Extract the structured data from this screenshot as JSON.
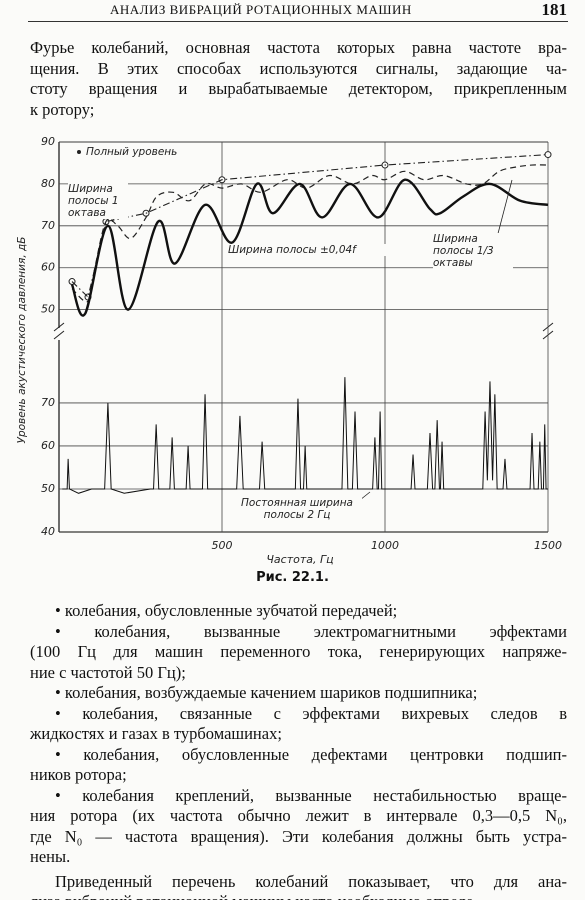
{
  "header": {
    "title": "АНАЛИЗ ВИБРАЦИЙ РОТАЦИОННЫХ МАШИН",
    "page": 181
  },
  "paragraphs": [
    [
      "Фурье колебаний, основная частота которых равна частоте вра-",
      "щения. В этих способах используются сигналы, задающие ча-",
      "стоту вращения и вырабатываемые детектором, прикрепленным",
      "к ротору;"
    ]
  ],
  "chart_data": [
    {
      "type": "line",
      "ylabel": "Уровень акустического давления, дБ",
      "xlim": [
        0,
        1500
      ],
      "ylim": [
        48,
        90
      ],
      "yticks": [
        50,
        60,
        70,
        80,
        90
      ],
      "grid": true,
      "series": [
        {
          "name": "Полный уровень",
          "color": "#222222",
          "style": "markers",
          "x": [
            40,
            89,
            144,
            267,
            500,
            1000,
            1500
          ],
          "values": [
            56.7,
            53,
            71,
            73,
            81,
            84.5,
            87
          ]
        },
        {
          "name": "Ширина полосы 1 октава",
          "color": "#222222",
          "style": "dashdot",
          "x": [
            40,
            89,
            144,
            267,
            500,
            1000,
            1500
          ],
          "values": [
            56.7,
            53,
            71,
            73,
            81,
            84.5,
            87
          ]
        },
        {
          "name": "Ширина полосы 1/3 октавы",
          "color": "#222222",
          "style": "dashed",
          "x": [
            40,
            89,
            110,
            144,
            180,
            220,
            267,
            300,
            350,
            400,
            450,
            500,
            560,
            620,
            700,
            760,
            830,
            900,
            960,
            1000,
            1060,
            1120,
            1180,
            1250,
            1300,
            1350,
            1400,
            1450,
            1500
          ],
          "values": [
            55,
            52,
            60,
            71,
            70,
            67,
            72,
            77,
            78,
            76,
            80,
            79,
            80,
            78,
            81,
            79,
            82,
            80,
            82,
            81,
            83,
            81,
            82,
            80,
            80,
            83,
            84,
            84.5,
            84.5
          ]
        },
        {
          "name": "Ширина полосы ±0,04f",
          "color": "#111111",
          "style": "solid",
          "x": [
            40,
            80,
            150,
            212,
            304,
            356,
            448,
            531,
            607,
            656,
            739,
            807,
            893,
            979,
            1061,
            1138,
            1169,
            1240,
            1322,
            1414,
            1500
          ],
          "values": [
            56,
            49,
            70,
            50,
            71,
            61,
            75,
            66,
            80,
            73,
            80,
            72,
            80,
            72,
            81,
            74,
            73,
            77,
            80,
            76,
            75
          ]
        }
      ]
    },
    {
      "type": "line",
      "xlabel": "Частота, Гц",
      "xlim": [
        0,
        1500
      ],
      "ylim": [
        40,
        83
      ],
      "xticks": [
        500,
        1000,
        1500
      ],
      "yticks": [
        40,
        50,
        60,
        70
      ],
      "grid": true,
      "series": [
        {
          "name": "Постоянная ширина полосы 2 Гц",
          "color": "#111111",
          "style": "thin",
          "x": [
            10,
            25,
            28,
            32,
            60,
            100,
            140,
            150,
            160,
            200,
            280,
            290,
            298,
            306,
            340,
            347,
            354,
            390,
            396,
            402,
            440,
            448,
            456,
            545,
            555,
            565,
            615,
            623,
            631,
            725,
            733,
            741,
            750,
            755,
            760,
            868,
            877,
            886,
            900,
            908,
            916,
            962,
            969,
            976,
            980,
            985,
            990,
            1080,
            1086,
            1092,
            1130,
            1138,
            1146,
            1153,
            1160,
            1167,
            1170,
            1175,
            1180,
            1300,
            1307,
            1314,
            1322,
            1330,
            1337,
            1344,
            1362,
            1368,
            1374,
            1445,
            1451,
            1457,
            1470,
            1475,
            1480,
            1486,
            1490,
            1494,
            1500
          ],
          "values": [
            50,
            50,
            57,
            50,
            49,
            50,
            50,
            70,
            50,
            49,
            50,
            50,
            65,
            50,
            50,
            62,
            50,
            50,
            60,
            50,
            50,
            72,
            50,
            50,
            67,
            50,
            50,
            61,
            50,
            50,
            71,
            50,
            50,
            60,
            50,
            50,
            76,
            50,
            50,
            68,
            50,
            50,
            62,
            50,
            50,
            68,
            50,
            50,
            58,
            50,
            50,
            63,
            50,
            50,
            66,
            50,
            50,
            61,
            50,
            50,
            68,
            52,
            75,
            52,
            72,
            50,
            50,
            57,
            50,
            50,
            63,
            50,
            50,
            61,
            50,
            50,
            65,
            50,
            50
          ]
        }
      ]
    }
  ],
  "caption": "Рис. 22.1.",
  "list": [
    [
      "• колебания, обусловленные зубчатой передачей;"
    ],
    [
      "• колебания, вызванные электромагнитными эффектами",
      "(100 Гц для машин переменного тока, генерирующих напряже-",
      "ние с частотой 50 Гц);"
    ],
    [
      "• колебания, возбуждаемые качением шариков подшипника;"
    ],
    [
      "• колебания, связанные с эффектами вихревых следов в",
      "жидкостях и газах в турбомашинах;"
    ],
    [
      "• колебания, обусловленные дефектами центровки подшип-",
      "ников ротора;"
    ],
    [
      "• колебания креплений, вызванные нестабильностью враще-",
      "ния ротора (их частота обычно лежит в интервале 0,3—0,5 N₀,",
      "где N₀ — частота вращения). Эти колебания должны быть устра-",
      "нены."
    ]
  ],
  "closing": [
    [
      "Приведенный перечень колебаний показывает, что для ана-",
      "лиза вибраций ротационной машины часто необходимо опреде-"
    ]
  ]
}
